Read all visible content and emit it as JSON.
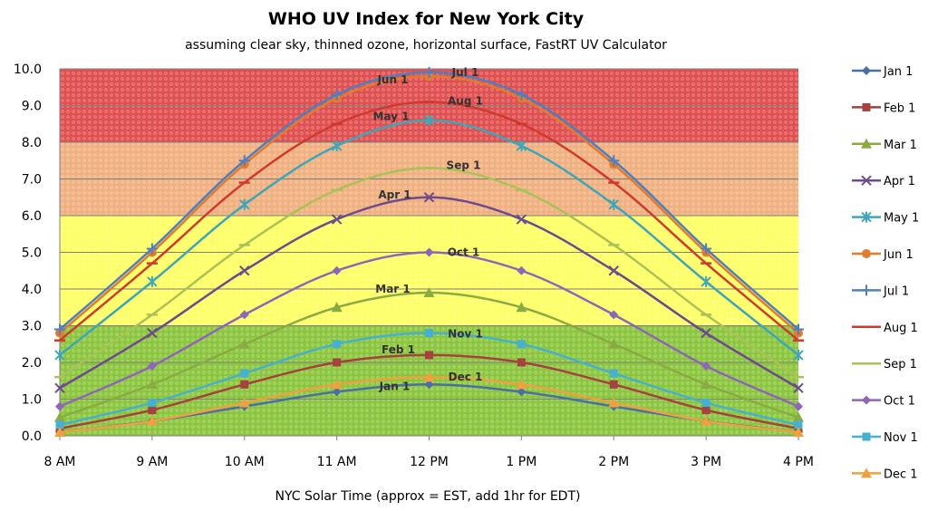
{
  "chart_data": {
    "type": "line",
    "title": "WHO UV Index for New York City",
    "subtitle": "assuming clear sky, thinned ozone, horizontal surface, FastRT UV Calculator",
    "xlabel": "NYC Solar Time (approx = EST, add 1hr for EDT)",
    "ylabel": "",
    "ylim": [
      0,
      10
    ],
    "yticks": [
      "0.0",
      "1.0",
      "2.0",
      "3.0",
      "4.0",
      "5.0",
      "6.0",
      "7.0",
      "8.0",
      "9.0",
      "10.0"
    ],
    "categories": [
      "8 AM",
      "9 AM",
      "10 AM",
      "11 AM",
      "12 PM",
      "1 PM",
      "2 PM",
      "3 PM",
      "4 PM"
    ],
    "grid": true,
    "legend_position": "right",
    "bands": [
      {
        "from": 0,
        "to": 3,
        "color": "#8cc63f"
      },
      {
        "from": 3,
        "to": 6,
        "color": "#ffff66"
      },
      {
        "from": 6,
        "to": 8,
        "color": "#f0b080"
      },
      {
        "from": 8,
        "to": 10,
        "color": "#e05050"
      }
    ],
    "series": [
      {
        "name": "Jan 1",
        "color": "#4a6fa5",
        "marker": "diamond",
        "label": "Jan 1",
        "values": [
          0.1,
          0.4,
          0.8,
          1.2,
          1.4,
          1.2,
          0.8,
          0.4,
          0.1
        ]
      },
      {
        "name": "Feb 1",
        "color": "#a5423d",
        "marker": "square",
        "label": "Feb 1",
        "values": [
          0.2,
          0.7,
          1.4,
          2.0,
          2.2,
          2.0,
          1.4,
          0.7,
          0.2
        ]
      },
      {
        "name": "Mar 1",
        "color": "#8aab42",
        "marker": "triangle",
        "label": "Mar 1",
        "values": [
          0.5,
          1.4,
          2.5,
          3.5,
          3.9,
          3.5,
          2.5,
          1.4,
          0.5
        ]
      },
      {
        "name": "Apr 1",
        "color": "#6e4a8e",
        "marker": "x",
        "label": "Apr 1",
        "values": [
          1.3,
          2.8,
          4.5,
          5.9,
          6.5,
          5.9,
          4.5,
          2.8,
          1.3
        ]
      },
      {
        "name": "May 1",
        "color": "#3ea6b8",
        "marker": "star",
        "label": "May 1",
        "values": [
          2.2,
          4.2,
          6.3,
          7.9,
          8.6,
          7.9,
          6.3,
          4.2,
          2.2
        ]
      },
      {
        "name": "Jun 1",
        "color": "#e07b2f",
        "marker": "circle",
        "label": "Jun 1",
        "values": [
          2.8,
          5.0,
          7.4,
          9.2,
          9.8,
          9.2,
          7.4,
          5.0,
          2.8
        ]
      },
      {
        "name": "Jul 1",
        "color": "#4f7fbf",
        "marker": "plus",
        "label": "Jul 1",
        "values": [
          2.9,
          5.1,
          7.5,
          9.3,
          9.9,
          9.3,
          7.5,
          5.1,
          2.9
        ]
      },
      {
        "name": "Aug 1",
        "color": "#d03a2e",
        "marker": "dash",
        "label": "Aug 1",
        "values": [
          2.6,
          4.7,
          6.9,
          8.5,
          9.1,
          8.5,
          6.9,
          4.7,
          2.6
        ]
      },
      {
        "name": "Sep 1",
        "color": "#a8c256",
        "marker": "dash",
        "label": "Sep 1",
        "values": [
          1.6,
          3.3,
          5.2,
          6.7,
          7.3,
          6.7,
          5.2,
          3.3,
          1.6
        ]
      },
      {
        "name": "Oct 1",
        "color": "#8e66b8",
        "marker": "diamond",
        "label": "Oct 1",
        "values": [
          0.8,
          1.9,
          3.3,
          4.5,
          5.0,
          4.5,
          3.3,
          1.9,
          0.8
        ]
      },
      {
        "name": "Nov 1",
        "color": "#45b0d0",
        "marker": "square",
        "label": "Nov 1",
        "values": [
          0.3,
          0.9,
          1.7,
          2.5,
          2.8,
          2.5,
          1.7,
          0.9,
          0.3
        ]
      },
      {
        "name": "Dec 1",
        "color": "#f0a040",
        "marker": "triangle",
        "label": "Dec 1",
        "values": [
          0.1,
          0.4,
          0.9,
          1.4,
          1.6,
          1.4,
          0.9,
          0.4,
          0.1
        ]
      }
    ]
  }
}
